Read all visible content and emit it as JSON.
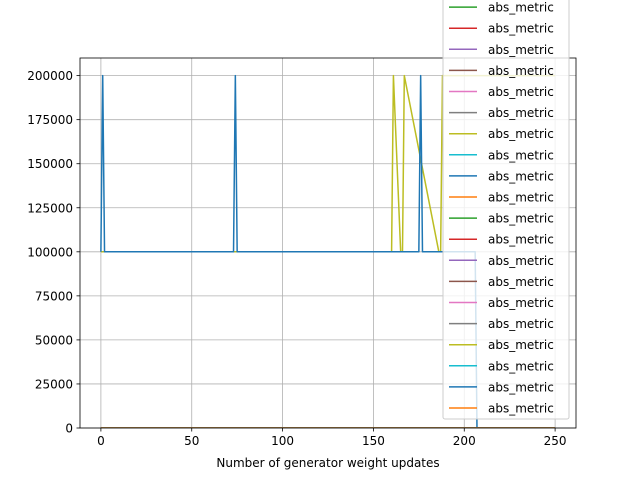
{
  "chart_data": {
    "type": "line",
    "title": "",
    "xlabel": "Number of generator weight updates",
    "ylabel": "",
    "xlim": [
      -11.5,
      261.5
    ],
    "ylim": [
      0,
      210000
    ],
    "grid": true,
    "legend_position": "top-right",
    "xticks": [
      0,
      50,
      100,
      150,
      200,
      250
    ],
    "xtick_labels": [
      "0",
      "50",
      "100",
      "150",
      "200",
      "250"
    ],
    "yticks": [
      0,
      25000,
      50000,
      75000,
      100000,
      125000,
      150000,
      175000,
      200000
    ],
    "ytick_labels": [
      "0",
      "25000",
      "50000",
      "75000",
      "100000",
      "125000",
      "150000",
      "175000",
      "200000"
    ],
    "series": [
      {
        "name": "abs_metric",
        "color": "#2ca02c",
        "x": [
          0,
          250
        ],
        "y": [
          0,
          0
        ]
      },
      {
        "name": "abs_metric",
        "color": "#d62728",
        "x": [
          0,
          250
        ],
        "y": [
          0,
          0
        ]
      },
      {
        "name": "abs_metric",
        "color": "#9467bd",
        "x": [
          0,
          250
        ],
        "y": [
          0,
          0
        ]
      },
      {
        "name": "abs_metric",
        "color": "#8c564b",
        "x": [
          0,
          250
        ],
        "y": [
          0,
          0
        ]
      },
      {
        "name": "abs_metric",
        "color": "#e377c2",
        "x": [
          0,
          250
        ],
        "y": [
          0,
          0
        ]
      },
      {
        "name": "abs_metric",
        "color": "#7f7f7f",
        "x": [
          0,
          250
        ],
        "y": [
          0,
          0
        ]
      },
      {
        "name": "abs_metric",
        "color": "#bcbd22",
        "x": [
          0,
          1,
          2,
          159,
          160,
          161,
          165,
          166,
          167,
          186,
          187,
          188,
          250
        ],
        "y": [
          100000,
          100000,
          100000,
          100000,
          100000,
          200000,
          100000,
          100000,
          200000,
          100000,
          100000,
          200000,
          200000
        ]
      },
      {
        "name": "abs_metric",
        "color": "#17becf",
        "x": [
          0,
          250
        ],
        "y": [
          0,
          0
        ]
      },
      {
        "name": "abs_metric",
        "color": "#1f77b4",
        "x": [
          0,
          1,
          2,
          73,
          74,
          75,
          175,
          176,
          177,
          206,
          207,
          208,
          250
        ],
        "y": [
          100000,
          200000,
          100000,
          100000,
          200000,
          100000,
          100000,
          200000,
          100000,
          100000,
          0,
          0,
          0
        ]
      },
      {
        "name": "abs_metric",
        "color": "#ff7f0e",
        "x": [
          0,
          250
        ],
        "y": [
          0,
          0
        ]
      },
      {
        "name": "abs_metric",
        "color": "#2ca02c",
        "x": [
          0,
          250
        ],
        "y": [
          0,
          0
        ]
      },
      {
        "name": "abs_metric",
        "color": "#d62728",
        "x": [
          0,
          250
        ],
        "y": [
          0,
          0
        ]
      },
      {
        "name": "abs_metric",
        "color": "#9467bd",
        "x": [
          0,
          250
        ],
        "y": [
          0,
          0
        ]
      },
      {
        "name": "abs_metric",
        "color": "#8c564b",
        "x": [
          0,
          250
        ],
        "y": [
          0,
          0
        ]
      },
      {
        "name": "abs_metric",
        "color": "#e377c2",
        "x": [
          0,
          250
        ],
        "y": [
          0,
          0
        ]
      },
      {
        "name": "abs_metric",
        "color": "#7f7f7f",
        "x": [
          0,
          250
        ],
        "y": [
          0,
          0
        ]
      },
      {
        "name": "abs_metric",
        "color": "#bcbd22",
        "x": [
          0,
          250
        ],
        "y": [
          0,
          0
        ]
      },
      {
        "name": "abs_metric",
        "color": "#17becf",
        "x": [
          0,
          250
        ],
        "y": [
          0,
          0
        ]
      },
      {
        "name": "abs_metric",
        "color": "#1f77b4",
        "x": [
          0,
          250
        ],
        "y": [
          0,
          0
        ]
      },
      {
        "name": "abs_metric",
        "color": "#ff7f0e",
        "x": [
          0,
          250
        ],
        "y": [
          0,
          0
        ]
      }
    ]
  }
}
